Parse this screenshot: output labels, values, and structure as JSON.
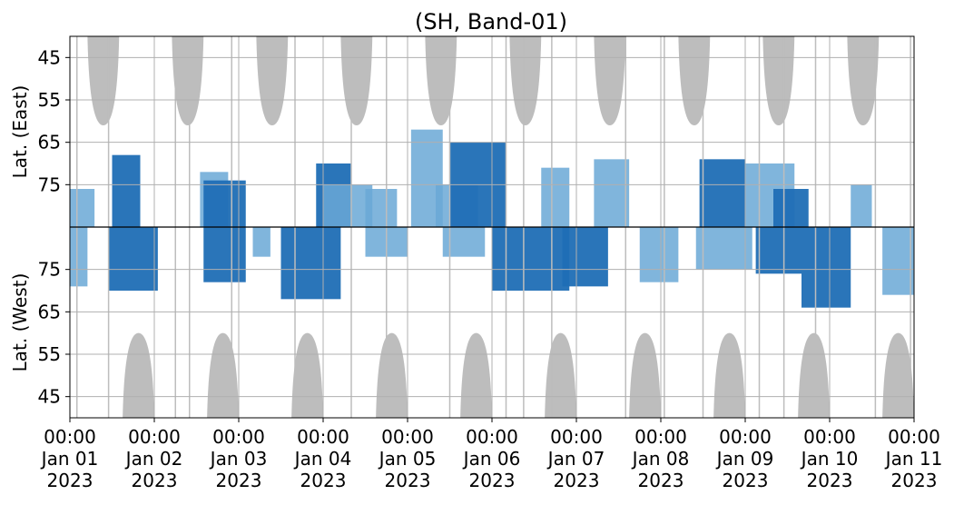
{
  "chart_data": {
    "type": "heatmap",
    "title": "(SH, Band-01)",
    "panels": [
      {
        "ylabel": "Lat. (East)",
        "yticks": [
          "45",
          "55",
          "65",
          "75"
        ],
        "ylim": [
          40,
          85
        ],
        "hemisphere": "east"
      },
      {
        "ylabel": "Lat. (West)",
        "yticks": [
          "75",
          "65",
          "55",
          "45"
        ],
        "ylim": [
          85,
          40
        ],
        "hemisphere": "west"
      }
    ],
    "xticks": [
      {
        "time": "00:00",
        "date": "Jan 01",
        "year": "2023"
      },
      {
        "time": "00:00",
        "date": "Jan 02",
        "year": "2023"
      },
      {
        "time": "00:00",
        "date": "Jan 03",
        "year": "2023"
      },
      {
        "time": "00:00",
        "date": "Jan 04",
        "year": "2023"
      },
      {
        "time": "00:00",
        "date": "Jan 05",
        "year": "2023"
      },
      {
        "time": "00:00",
        "date": "Jan 06",
        "year": "2023"
      },
      {
        "time": "00:00",
        "date": "Jan 07",
        "year": "2023"
      },
      {
        "time": "00:00",
        "date": "Jan 08",
        "year": "2023"
      },
      {
        "time": "00:00",
        "date": "Jan 09",
        "year": "2023"
      },
      {
        "time": "00:00",
        "date": "Jan 10",
        "year": "2023"
      },
      {
        "time": "00:00",
        "date": "Jan 11",
        "year": "2023"
      }
    ],
    "xlim": [
      "2023-01-01 00:00",
      "2023-01-11 00:00"
    ],
    "grid": true,
    "colors": {
      "strong": "#1f6eb5",
      "weak": "#6aa8d6",
      "no_coverage": "#bdbdbd",
      "grid": "#b0b0b0"
    },
    "no_coverage_regions": [
      {
        "hemisphere": "east",
        "start": "2023-01-01 05:00",
        "end": "2023-01-01 14:00",
        "lat_limit": 61
      },
      {
        "hemisphere": "east",
        "start": "2023-01-02 05:00",
        "end": "2023-01-02 14:00",
        "lat_limit": 61
      },
      {
        "hemisphere": "east",
        "start": "2023-01-03 05:00",
        "end": "2023-01-03 14:00",
        "lat_limit": 61
      },
      {
        "hemisphere": "east",
        "start": "2023-01-04 05:00",
        "end": "2023-01-04 14:00",
        "lat_limit": 61
      },
      {
        "hemisphere": "east",
        "start": "2023-01-05 05:00",
        "end": "2023-01-05 14:00",
        "lat_limit": 61
      },
      {
        "hemisphere": "east",
        "start": "2023-01-06 05:00",
        "end": "2023-01-06 14:00",
        "lat_limit": 61
      },
      {
        "hemisphere": "east",
        "start": "2023-01-07 05:00",
        "end": "2023-01-07 14:00",
        "lat_limit": 61
      },
      {
        "hemisphere": "east",
        "start": "2023-01-08 05:00",
        "end": "2023-01-08 14:00",
        "lat_limit": 61
      },
      {
        "hemisphere": "east",
        "start": "2023-01-09 05:00",
        "end": "2023-01-09 14:00",
        "lat_limit": 61
      },
      {
        "hemisphere": "east",
        "start": "2023-01-10 05:00",
        "end": "2023-01-10 14:00",
        "lat_limit": 61
      },
      {
        "hemisphere": "west",
        "start": "2023-01-01 15:00",
        "end": "2023-01-02 00:00",
        "lat_limit": 60
      },
      {
        "hemisphere": "west",
        "start": "2023-01-02 15:00",
        "end": "2023-01-03 00:00",
        "lat_limit": 60
      },
      {
        "hemisphere": "west",
        "start": "2023-01-03 15:00",
        "end": "2023-01-04 00:00",
        "lat_limit": 60
      },
      {
        "hemisphere": "west",
        "start": "2023-01-04 15:00",
        "end": "2023-01-05 00:00",
        "lat_limit": 60
      },
      {
        "hemisphere": "west",
        "start": "2023-01-05 15:00",
        "end": "2023-01-06 00:00",
        "lat_limit": 60
      },
      {
        "hemisphere": "west",
        "start": "2023-01-06 15:00",
        "end": "2023-01-07 00:00",
        "lat_limit": 60
      },
      {
        "hemisphere": "west",
        "start": "2023-01-07 15:00",
        "end": "2023-01-08 00:00",
        "lat_limit": 60
      },
      {
        "hemisphere": "west",
        "start": "2023-01-08 15:00",
        "end": "2023-01-09 00:00",
        "lat_limit": 60
      },
      {
        "hemisphere": "west",
        "start": "2023-01-09 15:00",
        "end": "2023-01-10 00:00",
        "lat_limit": 60
      },
      {
        "hemisphere": "west",
        "start": "2023-01-10 15:00",
        "end": "2023-01-11 00:00",
        "lat_limit": 60
      }
    ],
    "data_gaps": [
      "2023-01-01 02:00",
      "2023-01-01 11:00",
      "2023-01-02 06:00",
      "2023-01-02 10:00",
      "2023-01-02 22:00",
      "2023-01-03 16:00",
      "2023-01-04 08:00",
      "2023-01-04 18:00",
      "2023-01-05 12:00",
      "2023-01-06 04:00",
      "2023-01-06 09:00",
      "2023-01-06 17:00",
      "2023-01-07 14:00",
      "2023-01-08 01:00",
      "2023-01-08 12:00",
      "2023-01-09 04:00",
      "2023-01-09 11:00",
      "2023-01-09 20:00",
      "2023-01-10 13:00",
      "2023-01-10 23:00"
    ],
    "activity": [
      {
        "hemisphere": "east",
        "start": "2023-01-01 00:00",
        "end": "2023-01-01 07:00",
        "lat_min": 76,
        "lat_max": 85,
        "intensity": "weak"
      },
      {
        "hemisphere": "east",
        "start": "2023-01-01 12:00",
        "end": "2023-01-01 20:00",
        "lat_min": 68,
        "lat_max": 85,
        "intensity": "strong"
      },
      {
        "hemisphere": "east",
        "start": "2023-01-02 13:00",
        "end": "2023-01-02 21:00",
        "lat_min": 72,
        "lat_max": 85,
        "intensity": "weak"
      },
      {
        "hemisphere": "east",
        "start": "2023-01-02 14:00",
        "end": "2023-01-03 02:00",
        "lat_min": 74,
        "lat_max": 85,
        "intensity": "strong"
      },
      {
        "hemisphere": "east",
        "start": "2023-01-03 22:00",
        "end": "2023-01-04 08:00",
        "lat_min": 70,
        "lat_max": 85,
        "intensity": "strong"
      },
      {
        "hemisphere": "east",
        "start": "2023-01-04 00:00",
        "end": "2023-01-04 14:00",
        "lat_min": 75,
        "lat_max": 85,
        "intensity": "weak"
      },
      {
        "hemisphere": "east",
        "start": "2023-01-04 12:00",
        "end": "2023-01-04 21:00",
        "lat_min": 76,
        "lat_max": 85,
        "intensity": "weak"
      },
      {
        "hemisphere": "east",
        "start": "2023-01-05 01:00",
        "end": "2023-01-05 10:00",
        "lat_min": 62,
        "lat_max": 85,
        "intensity": "weak"
      },
      {
        "hemisphere": "east",
        "start": "2023-01-05 08:00",
        "end": "2023-01-05 20:00",
        "lat_min": 75,
        "lat_max": 85,
        "intensity": "weak"
      },
      {
        "hemisphere": "east",
        "start": "2023-01-05 12:00",
        "end": "2023-01-06 04:00",
        "lat_min": 65,
        "lat_max": 85,
        "intensity": "strong"
      },
      {
        "hemisphere": "east",
        "start": "2023-01-06 14:00",
        "end": "2023-01-06 22:00",
        "lat_min": 71,
        "lat_max": 85,
        "intensity": "weak"
      },
      {
        "hemisphere": "east",
        "start": "2023-01-07 05:00",
        "end": "2023-01-07 15:00",
        "lat_min": 69,
        "lat_max": 85,
        "intensity": "weak"
      },
      {
        "hemisphere": "east",
        "start": "2023-01-08 11:00",
        "end": "2023-01-09 00:00",
        "lat_min": 69,
        "lat_max": 85,
        "intensity": "strong"
      },
      {
        "hemisphere": "east",
        "start": "2023-01-09 00:00",
        "end": "2023-01-09 14:00",
        "lat_min": 70,
        "lat_max": 85,
        "intensity": "weak"
      },
      {
        "hemisphere": "east",
        "start": "2023-01-09 08:00",
        "end": "2023-01-09 18:00",
        "lat_min": 76,
        "lat_max": 85,
        "intensity": "strong"
      },
      {
        "hemisphere": "east",
        "start": "2023-01-10 06:00",
        "end": "2023-01-10 12:00",
        "lat_min": 75,
        "lat_max": 85,
        "intensity": "weak"
      },
      {
        "hemisphere": "west",
        "start": "2023-01-01 00:00",
        "end": "2023-01-01 05:00",
        "lat_min": 71,
        "lat_max": 85,
        "intensity": "weak"
      },
      {
        "hemisphere": "west",
        "start": "2023-01-01 11:00",
        "end": "2023-01-02 01:00",
        "lat_min": 70,
        "lat_max": 85,
        "intensity": "strong"
      },
      {
        "hemisphere": "west",
        "start": "2023-01-02 14:00",
        "end": "2023-01-03 02:00",
        "lat_min": 72,
        "lat_max": 85,
        "intensity": "strong"
      },
      {
        "hemisphere": "west",
        "start": "2023-01-03 04:00",
        "end": "2023-01-03 09:00",
        "lat_min": 78,
        "lat_max": 85,
        "intensity": "weak"
      },
      {
        "hemisphere": "west",
        "start": "2023-01-03 12:00",
        "end": "2023-01-04 05:00",
        "lat_min": 68,
        "lat_max": 85,
        "intensity": "strong"
      },
      {
        "hemisphere": "west",
        "start": "2023-01-04 12:00",
        "end": "2023-01-05 00:00",
        "lat_min": 78,
        "lat_max": 85,
        "intensity": "weak"
      },
      {
        "hemisphere": "west",
        "start": "2023-01-05 10:00",
        "end": "2023-01-05 22:00",
        "lat_min": 78,
        "lat_max": 85,
        "intensity": "weak"
      },
      {
        "hemisphere": "west",
        "start": "2023-01-06 00:00",
        "end": "2023-01-06 22:00",
        "lat_min": 70,
        "lat_max": 85,
        "intensity": "strong"
      },
      {
        "hemisphere": "west",
        "start": "2023-01-06 20:00",
        "end": "2023-01-07 09:00",
        "lat_min": 71,
        "lat_max": 85,
        "intensity": "strong"
      },
      {
        "hemisphere": "west",
        "start": "2023-01-07 18:00",
        "end": "2023-01-08 05:00",
        "lat_min": 72,
        "lat_max": 85,
        "intensity": "weak"
      },
      {
        "hemisphere": "west",
        "start": "2023-01-08 10:00",
        "end": "2023-01-09 02:00",
        "lat_min": 75,
        "lat_max": 85,
        "intensity": "weak"
      },
      {
        "hemisphere": "west",
        "start": "2023-01-09 03:00",
        "end": "2023-01-09 16:00",
        "lat_min": 74,
        "lat_max": 85,
        "intensity": "strong"
      },
      {
        "hemisphere": "west",
        "start": "2023-01-09 16:00",
        "end": "2023-01-10 06:00",
        "lat_min": 66,
        "lat_max": 85,
        "intensity": "strong"
      },
      {
        "hemisphere": "west",
        "start": "2023-01-10 15:00",
        "end": "2023-01-11 00:00",
        "lat_min": 69,
        "lat_max": 85,
        "intensity": "weak"
      }
    ]
  }
}
